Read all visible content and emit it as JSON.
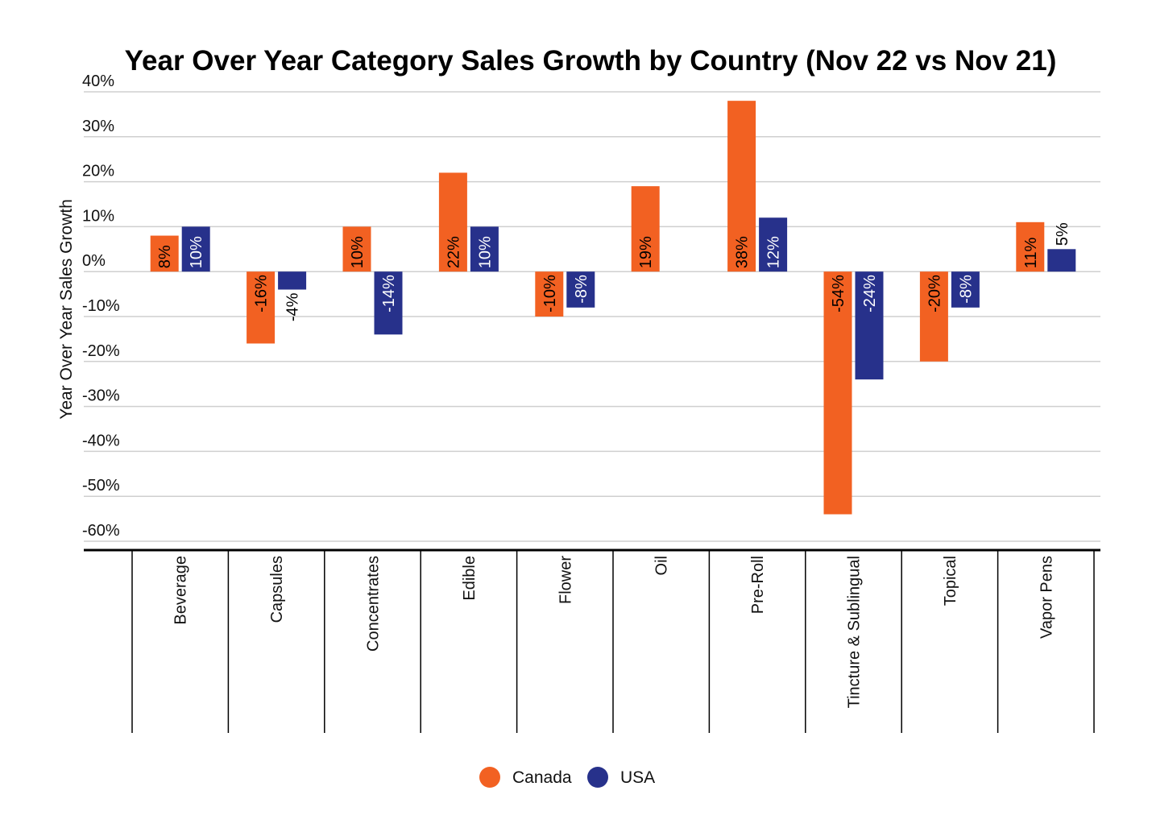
{
  "chart_data": {
    "type": "bar",
    "title": "Year Over Year Category Sales Growth by Country (Nov 22 vs Nov 21)",
    "xlabel": "",
    "ylabel": "Year Over Year Sales Growth",
    "ylim": [
      -60,
      40
    ],
    "yticks": [
      "40%",
      "30%",
      "20%",
      "10%",
      "0%",
      "-10%",
      "-20%",
      "-30%",
      "-40%",
      "-50%",
      "-60%"
    ],
    "ytick_values": [
      40,
      30,
      20,
      10,
      0,
      -10,
      -20,
      -30,
      -40,
      -50,
      -60
    ],
    "grid": true,
    "legend_position": "bottom-center",
    "categories": [
      "Beverage",
      "Capsules",
      "Concentrates",
      "Edible",
      "Flower",
      "Oil",
      "Pre-Roll",
      "Tincture & Sublingual",
      "Topical",
      "Vapor Pens"
    ],
    "series": [
      {
        "name": "Canada",
        "color": "#F26122",
        "values": [
          8,
          -16,
          10,
          22,
          -10,
          19,
          38,
          -54,
          -20,
          11
        ],
        "labels": [
          "8%",
          "-16%",
          "10%",
          "22%",
          "-10%",
          "19%",
          "38%",
          "-54%",
          "-20%",
          "11%"
        ]
      },
      {
        "name": "USA",
        "color": "#27318B",
        "values": [
          10,
          -4,
          -14,
          10,
          -8,
          null,
          12,
          -24,
          -8,
          5
        ],
        "labels": [
          "10%",
          "-4%",
          "-14%",
          "10%",
          "-8%",
          "",
          "12%",
          "-24%",
          "-8%",
          "5%"
        ]
      }
    ]
  }
}
